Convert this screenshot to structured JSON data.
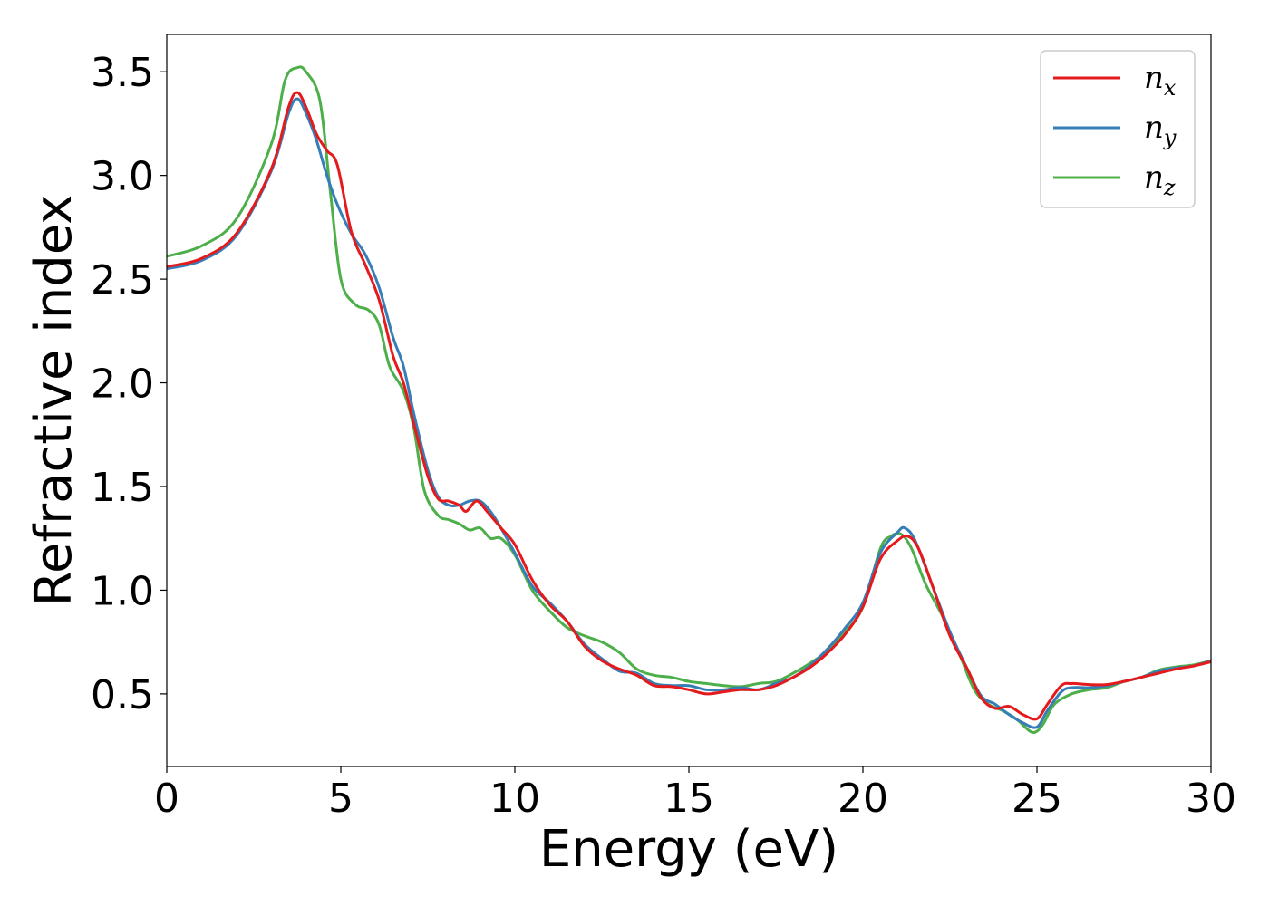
{
  "chart_data": {
    "type": "line",
    "title": "",
    "xlabel": "Energy (eV)",
    "ylabel": "Refractive index",
    "xlim": [
      0,
      30
    ],
    "ylim": [
      0.15,
      3.68
    ],
    "xticks": [
      "0",
      "5",
      "10",
      "15",
      "20",
      "25",
      "30"
    ],
    "yticks": [
      "0.5",
      "1.0",
      "1.5",
      "2.0",
      "2.5",
      "3.0",
      "3.5"
    ],
    "grid": false,
    "legend_position": "top-right",
    "series": [
      {
        "name": "n",
        "subscript": "x",
        "color": "#e41a1c",
        "points": [
          [
            0,
            2.56
          ],
          [
            1,
            2.6
          ],
          [
            2,
            2.72
          ],
          [
            3,
            3.03
          ],
          [
            3.5,
            3.33
          ],
          [
            3.75,
            3.4
          ],
          [
            4.0,
            3.33
          ],
          [
            4.3,
            3.2
          ],
          [
            4.6,
            3.12
          ],
          [
            4.9,
            3.05
          ],
          [
            5.3,
            2.73
          ],
          [
            5.7,
            2.57
          ],
          [
            6.1,
            2.4
          ],
          [
            6.5,
            2.13
          ],
          [
            6.8,
            2.0
          ],
          [
            7.1,
            1.8
          ],
          [
            7.5,
            1.55
          ],
          [
            7.8,
            1.44
          ],
          [
            8.1,
            1.43
          ],
          [
            8.4,
            1.41
          ],
          [
            8.6,
            1.38
          ],
          [
            8.9,
            1.43
          ],
          [
            9.2,
            1.38
          ],
          [
            9.6,
            1.3
          ],
          [
            10.0,
            1.22
          ],
          [
            10.5,
            1.05
          ],
          [
            11.0,
            0.93
          ],
          [
            11.5,
            0.85
          ],
          [
            12.0,
            0.73
          ],
          [
            12.5,
            0.66
          ],
          [
            13.0,
            0.62
          ],
          [
            13.5,
            0.59
          ],
          [
            14.0,
            0.54
          ],
          [
            14.5,
            0.535
          ],
          [
            15.0,
            0.52
          ],
          [
            15.5,
            0.5
          ],
          [
            16.0,
            0.51
          ],
          [
            16.5,
            0.52
          ],
          [
            17.0,
            0.52
          ],
          [
            17.5,
            0.54
          ],
          [
            18.0,
            0.58
          ],
          [
            18.5,
            0.63
          ],
          [
            19.0,
            0.7
          ],
          [
            19.5,
            0.79
          ],
          [
            20.0,
            0.92
          ],
          [
            20.5,
            1.15
          ],
          [
            21.0,
            1.24
          ],
          [
            21.3,
            1.26
          ],
          [
            21.6,
            1.2
          ],
          [
            22.0,
            1.02
          ],
          [
            22.5,
            0.78
          ],
          [
            23.0,
            0.62
          ],
          [
            23.4,
            0.48
          ],
          [
            23.8,
            0.43
          ],
          [
            24.2,
            0.44
          ],
          [
            24.6,
            0.4
          ],
          [
            25.0,
            0.38
          ],
          [
            25.3,
            0.45
          ],
          [
            25.7,
            0.54
          ],
          [
            26.0,
            0.55
          ],
          [
            26.5,
            0.545
          ],
          [
            27.0,
            0.545
          ],
          [
            27.5,
            0.56
          ],
          [
            28.0,
            0.58
          ],
          [
            28.5,
            0.6
          ],
          [
            29.0,
            0.62
          ],
          [
            29.5,
            0.635
          ],
          [
            30.0,
            0.655
          ]
        ]
      },
      {
        "name": "n",
        "subscript": "y",
        "color": "#377eb8",
        "points": [
          [
            0,
            2.55
          ],
          [
            1,
            2.59
          ],
          [
            2,
            2.71
          ],
          [
            3,
            3.02
          ],
          [
            3.5,
            3.3
          ],
          [
            3.75,
            3.37
          ],
          [
            4.0,
            3.3
          ],
          [
            4.3,
            3.17
          ],
          [
            4.6,
            3.0
          ],
          [
            4.9,
            2.86
          ],
          [
            5.3,
            2.72
          ],
          [
            5.7,
            2.62
          ],
          [
            6.1,
            2.46
          ],
          [
            6.5,
            2.22
          ],
          [
            6.8,
            2.08
          ],
          [
            7.1,
            1.85
          ],
          [
            7.5,
            1.58
          ],
          [
            7.8,
            1.45
          ],
          [
            8.1,
            1.41
          ],
          [
            8.4,
            1.41
          ],
          [
            8.7,
            1.43
          ],
          [
            9.0,
            1.43
          ],
          [
            9.3,
            1.38
          ],
          [
            9.6,
            1.3
          ],
          [
            10.0,
            1.18
          ],
          [
            10.5,
            1.02
          ],
          [
            11.0,
            0.94
          ],
          [
            11.5,
            0.85
          ],
          [
            12.0,
            0.74
          ],
          [
            12.5,
            0.67
          ],
          [
            13.0,
            0.61
          ],
          [
            13.5,
            0.6
          ],
          [
            14.0,
            0.55
          ],
          [
            14.5,
            0.54
          ],
          [
            15.0,
            0.54
          ],
          [
            15.5,
            0.52
          ],
          [
            16.0,
            0.52
          ],
          [
            16.5,
            0.53
          ],
          [
            17.0,
            0.52
          ],
          [
            17.5,
            0.55
          ],
          [
            18.0,
            0.58
          ],
          [
            18.5,
            0.64
          ],
          [
            19.0,
            0.72
          ],
          [
            19.5,
            0.82
          ],
          [
            20.0,
            0.94
          ],
          [
            20.5,
            1.18
          ],
          [
            21.0,
            1.28
          ],
          [
            21.2,
            1.3
          ],
          [
            21.5,
            1.24
          ],
          [
            22.0,
            1.02
          ],
          [
            22.5,
            0.8
          ],
          [
            23.0,
            0.62
          ],
          [
            23.4,
            0.49
          ],
          [
            23.8,
            0.45
          ],
          [
            24.2,
            0.4
          ],
          [
            24.6,
            0.36
          ],
          [
            25.0,
            0.34
          ],
          [
            25.3,
            0.42
          ],
          [
            25.7,
            0.51
          ],
          [
            26.0,
            0.53
          ],
          [
            26.5,
            0.53
          ],
          [
            27.0,
            0.54
          ],
          [
            27.5,
            0.56
          ],
          [
            28.0,
            0.58
          ],
          [
            28.5,
            0.61
          ],
          [
            29.0,
            0.625
          ],
          [
            29.5,
            0.635
          ],
          [
            30.0,
            0.66
          ]
        ]
      },
      {
        "name": "n",
        "subscript": "z",
        "color": "#4daf4a",
        "points": [
          [
            0,
            2.61
          ],
          [
            1,
            2.66
          ],
          [
            2,
            2.79
          ],
          [
            3,
            3.15
          ],
          [
            3.4,
            3.46
          ],
          [
            3.75,
            3.52
          ],
          [
            4.0,
            3.5
          ],
          [
            4.4,
            3.36
          ],
          [
            4.7,
            2.92
          ],
          [
            5.0,
            2.5
          ],
          [
            5.4,
            2.38
          ],
          [
            5.8,
            2.35
          ],
          [
            6.1,
            2.28
          ],
          [
            6.4,
            2.08
          ],
          [
            6.8,
            1.96
          ],
          [
            7.1,
            1.78
          ],
          [
            7.4,
            1.48
          ],
          [
            7.8,
            1.36
          ],
          [
            8.1,
            1.34
          ],
          [
            8.4,
            1.32
          ],
          [
            8.7,
            1.29
          ],
          [
            9.0,
            1.3
          ],
          [
            9.3,
            1.25
          ],
          [
            9.6,
            1.25
          ],
          [
            10.0,
            1.17
          ],
          [
            10.5,
            1.0
          ],
          [
            11.0,
            0.9
          ],
          [
            11.5,
            0.82
          ],
          [
            12.0,
            0.78
          ],
          [
            12.5,
            0.75
          ],
          [
            13.0,
            0.7
          ],
          [
            13.5,
            0.62
          ],
          [
            14.0,
            0.59
          ],
          [
            14.5,
            0.58
          ],
          [
            15.0,
            0.56
          ],
          [
            15.5,
            0.55
          ],
          [
            16.0,
            0.54
          ],
          [
            16.5,
            0.535
          ],
          [
            17.0,
            0.55
          ],
          [
            17.5,
            0.56
          ],
          [
            18.0,
            0.6
          ],
          [
            18.5,
            0.65
          ],
          [
            19.0,
            0.71
          ],
          [
            19.5,
            0.8
          ],
          [
            20.0,
            0.92
          ],
          [
            20.5,
            1.2
          ],
          [
            20.8,
            1.26
          ],
          [
            21.1,
            1.27
          ],
          [
            21.4,
            1.2
          ],
          [
            21.8,
            1.03
          ],
          [
            22.3,
            0.87
          ],
          [
            22.8,
            0.68
          ],
          [
            23.2,
            0.52
          ],
          [
            23.6,
            0.45
          ],
          [
            24.0,
            0.42
          ],
          [
            24.4,
            0.38
          ],
          [
            24.8,
            0.32
          ],
          [
            25.0,
            0.32
          ],
          [
            25.2,
            0.36
          ],
          [
            25.5,
            0.45
          ],
          [
            26.0,
            0.5
          ],
          [
            26.5,
            0.52
          ],
          [
            27.0,
            0.53
          ],
          [
            27.5,
            0.56
          ],
          [
            28.0,
            0.58
          ],
          [
            28.5,
            0.615
          ],
          [
            29.0,
            0.63
          ],
          [
            29.5,
            0.64
          ],
          [
            30.0,
            0.66
          ]
        ]
      }
    ]
  }
}
